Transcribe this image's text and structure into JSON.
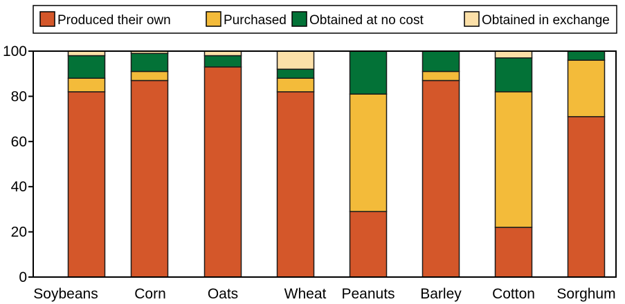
{
  "chart_data": {
    "type": "bar",
    "stacked": true,
    "categories": [
      "Soybeans",
      "Corn",
      "Oats",
      "Wheat",
      "Peanuts",
      "Barley",
      "Cotton",
      "Sorghum"
    ],
    "series": [
      {
        "name": "Produced their own",
        "color": "#d4572a",
        "values": [
          82,
          87,
          93,
          82,
          29,
          87,
          22,
          71
        ]
      },
      {
        "name": "Purchased",
        "color": "#f3bb3a",
        "values": [
          6,
          4,
          0,
          6,
          52,
          4,
          60,
          25
        ]
      },
      {
        "name": "Obtained at no cost",
        "color": "#037237",
        "values": [
          10,
          8,
          5,
          4,
          19,
          9,
          15,
          4
        ]
      },
      {
        "name": "Obtained in exchange",
        "color": "#fce0a8",
        "values": [
          2,
          1,
          2,
          8,
          0,
          0,
          3,
          0
        ]
      }
    ],
    "yticks": [
      "0",
      "20",
      "40",
      "60",
      "80",
      "100"
    ],
    "ylim": [
      0,
      100
    ],
    "grid": false,
    "legend_position": "top"
  }
}
